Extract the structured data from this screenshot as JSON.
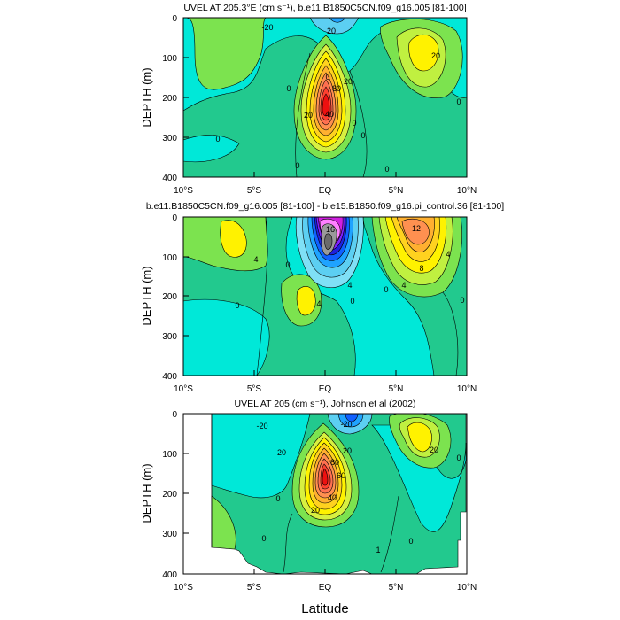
{
  "figure": {
    "xlabel": "Latitude"
  },
  "chart_data": [
    {
      "type": "contour",
      "title": "UVEL AT 205.3°E (cm s⁻¹), b.e11.B1850C5CN.f09_g16.005 [81-100]",
      "ylabel": "DEPTH (m)",
      "xlim": [
        -10,
        10
      ],
      "ylim": [
        0,
        400
      ],
      "xticks": [
        "10°S",
        "5°S",
        "EQ",
        "5°N",
        "10°N"
      ],
      "yticks": [
        "0",
        "100",
        "200",
        "300",
        "400"
      ],
      "contour_interval": 10,
      "core_max": 90,
      "contour_labels": [
        "-20",
        "20",
        "20",
        "0",
        "0",
        "80",
        "20",
        "20",
        "40",
        "0",
        "0",
        "0",
        "0",
        "0",
        "0"
      ]
    },
    {
      "type": "contour",
      "title": "b.e11.B1850C5CN.f09_g16.005 [81-100] - b.e15.B1850.f09_g16.pi_control.36 [81-100]",
      "ylabel": "DEPTH (m)",
      "xlim": [
        -10,
        10
      ],
      "ylim": [
        0,
        400
      ],
      "xticks": [
        "10°S",
        "5°S",
        "EQ",
        "5°N",
        "10°N"
      ],
      "yticks": [
        "0",
        "100",
        "200",
        "300",
        "400"
      ],
      "contour_interval": 2,
      "core_max": 16,
      "contour_labels": [
        "4",
        "16",
        "12",
        "8",
        "4",
        "4",
        "0",
        "0",
        "4",
        "4",
        "0",
        "0",
        "0"
      ]
    },
    {
      "type": "contour",
      "title": "UVEL AT 205 (cm s⁻¹), Johnson et al (2002)",
      "ylabel": "DEPTH (m)",
      "xlim": [
        -10,
        10
      ],
      "ylim": [
        0,
        400
      ],
      "xticks": [
        "10°S",
        "5°S",
        "EQ",
        "5°N",
        "10°N"
      ],
      "yticks": [
        "0",
        "100",
        "200",
        "300",
        "400"
      ],
      "contour_interval": 10,
      "core_max": 90,
      "contour_labels": [
        "-20",
        "20",
        "20",
        "-20",
        "80",
        "60",
        "20",
        "40",
        "20",
        "0",
        "0",
        "0",
        "0",
        "1"
      ]
    }
  ]
}
